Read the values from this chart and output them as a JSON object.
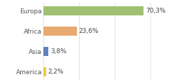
{
  "categories": [
    "America",
    "Asia",
    "Africa",
    "Europa"
  ],
  "values": [
    2.2,
    3.8,
    23.6,
    70.3
  ],
  "labels": [
    "2,2%",
    "3,8%",
    "23,6%",
    "70,3%"
  ],
  "bar_colors": [
    "#f0c93a",
    "#6080c0",
    "#e8aa70",
    "#9fc070"
  ],
  "xlim": [
    0,
    100
  ],
  "background_color": "#ffffff",
  "bar_height": 0.45,
  "label_fontsize": 6.5,
  "tick_fontsize": 6.5,
  "grid_color": "#dddddd",
  "grid_x": [
    0,
    25,
    50,
    75,
    100
  ]
}
